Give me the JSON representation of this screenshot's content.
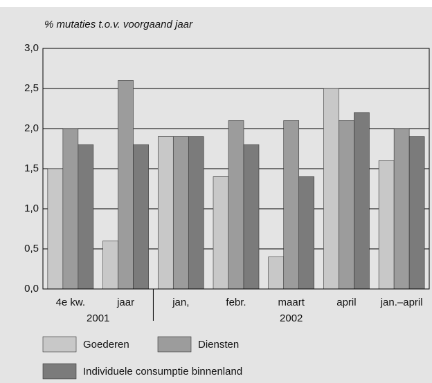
{
  "chart_data": {
    "type": "bar",
    "title": "% mutaties t.o.v. voorgaand jaar",
    "categories": [
      "4e kw.",
      "jaar",
      "jan,",
      "febr.",
      "maart",
      "april",
      "jan.–april"
    ],
    "group_labels": [
      "2001",
      "2002"
    ],
    "series": [
      {
        "name": "Goederen",
        "color": "#c8c8c8",
        "values": [
          1.5,
          0.6,
          1.9,
          1.4,
          0.4,
          2.5,
          1.6
        ]
      },
      {
        "name": "Diensten",
        "color": "#9c9c9c",
        "values": [
          2.0,
          2.6,
          1.9,
          2.1,
          2.1,
          2.1,
          2.0
        ]
      },
      {
        "name": "Individuele consumptie binnenland",
        "color": "#7b7b7b",
        "values": [
          1.8,
          1.8,
          1.9,
          1.8,
          1.4,
          2.2,
          1.9
        ]
      }
    ],
    "ylim": [
      0,
      3
    ],
    "yticks": [
      {
        "value": 0,
        "label": "0,0"
      },
      {
        "value": 0.5,
        "label": "0,5"
      },
      {
        "value": 1,
        "label": "1,0"
      },
      {
        "value": 1.5,
        "label": "1,5"
      },
      {
        "value": 2,
        "label": "2,0"
      },
      {
        "value": 2.5,
        "label": "2,5"
      },
      {
        "value": 3,
        "label": "3,0"
      }
    ],
    "grid": true
  }
}
